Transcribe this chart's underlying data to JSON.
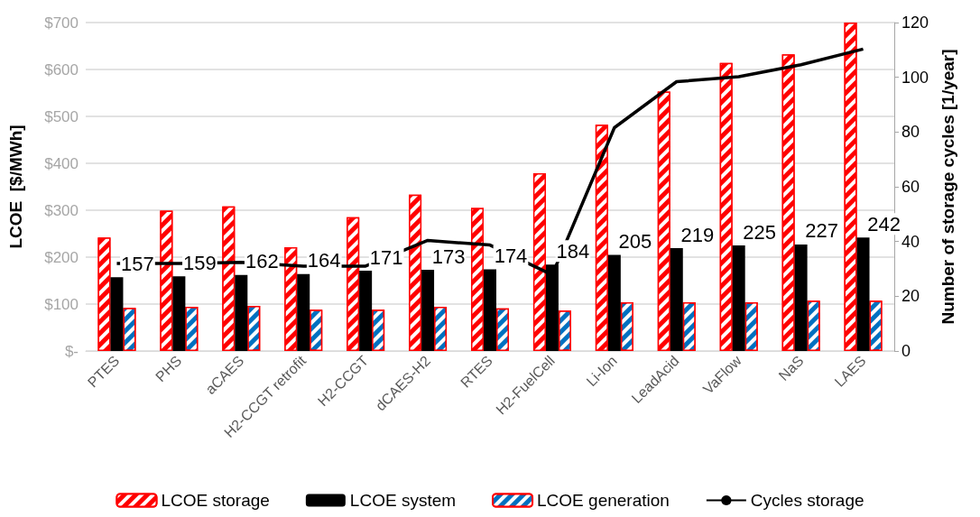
{
  "chart_data": {
    "type": "bar",
    "ylabel": "LCOE  [$/MWh]",
    "y2label": "Number of storage cycles [1/year]",
    "categories": [
      "PTES",
      "PHS",
      "aCAES",
      "H2-CCGT retrofit",
      "H2-CCGT",
      "dCAES-H2",
      "RTES",
      "H2-FuelCell",
      "Li-Ion",
      "LeadAcid",
      "VaFlow",
      "NaS",
      "LAES"
    ],
    "series": [
      {
        "name": "LCOE storage",
        "color": "#ff0000",
        "values": [
          242,
          299,
          308,
          221,
          285,
          333,
          305,
          379,
          482,
          553,
          614,
          632,
          700
        ]
      },
      {
        "name": "LCOE system",
        "color": "#000000",
        "values": [
          157,
          159,
          162,
          164,
          171,
          173,
          174,
          184,
          205,
          219,
          225,
          227,
          242
        ],
        "data_labels": true
      },
      {
        "name": "LCOE generation",
        "color": "#0070c0",
        "values": [
          92,
          94,
          96,
          88,
          88,
          94,
          91,
          86,
          104,
          104,
          104,
          107,
          107
        ]
      },
      {
        "name": "Cycles storage",
        "type": "line",
        "axis": "y2",
        "color": "#000000",
        "values": [
          32,
          32,
          32.4,
          31,
          31,
          40.4,
          38.7,
          27.8,
          81.6,
          98.4,
          100.2,
          104.6,
          110.3
        ]
      }
    ],
    "ylim": [
      0,
      700
    ],
    "yticks": [
      {
        "value": 0,
        "label": "$-"
      },
      {
        "value": 100,
        "label": "$100"
      },
      {
        "value": 200,
        "label": "$200"
      },
      {
        "value": 300,
        "label": "$300"
      },
      {
        "value": 400,
        "label": "$400"
      },
      {
        "value": 500,
        "label": "$500"
      },
      {
        "value": 600,
        "label": "$600"
      },
      {
        "value": 700,
        "label": "$700"
      }
    ],
    "y2lim": [
      0,
      120
    ],
    "y2ticks": [
      0,
      20,
      40,
      60,
      80,
      100,
      120
    ],
    "grid": "y",
    "legend": "bottom",
    "marker": "none",
    "line_style": "solid"
  }
}
